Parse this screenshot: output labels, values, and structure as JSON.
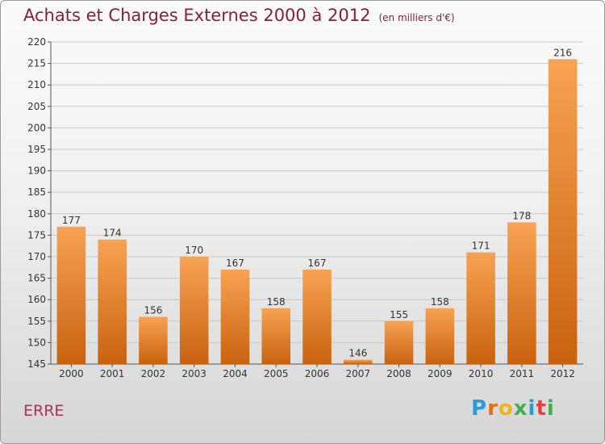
{
  "page": {
    "title": "Achats et Charges Externes 2000 à 2012",
    "subtitle": "(en milliers d'€)",
    "town": "ERRE",
    "logo_letters": [
      "P",
      "r",
      "o",
      "x",
      "i",
      "t",
      "i"
    ],
    "logo_colors": [
      "#2a9ad8",
      "#e86b18",
      "#f2b21a",
      "#43b049",
      "#2a9ad8",
      "#e84040",
      "#43b049"
    ]
  },
  "chart_data": {
    "type": "bar",
    "categories": [
      "2000",
      "2001",
      "2002",
      "2003",
      "2004",
      "2005",
      "2006",
      "2007",
      "2008",
      "2009",
      "2010",
      "2011",
      "2012"
    ],
    "values": [
      177,
      174,
      156,
      170,
      167,
      158,
      167,
      146,
      155,
      158,
      171,
      178,
      216
    ],
    "ylim": [
      145,
      220
    ],
    "yticks": [
      145,
      150,
      155,
      160,
      165,
      170,
      175,
      180,
      185,
      190,
      195,
      200,
      205,
      210,
      215,
      220
    ],
    "grid": true,
    "bar_color_top": "#f7a352",
    "bar_color_bottom": "#c9620f",
    "grid_color": "#c8c8c8"
  }
}
